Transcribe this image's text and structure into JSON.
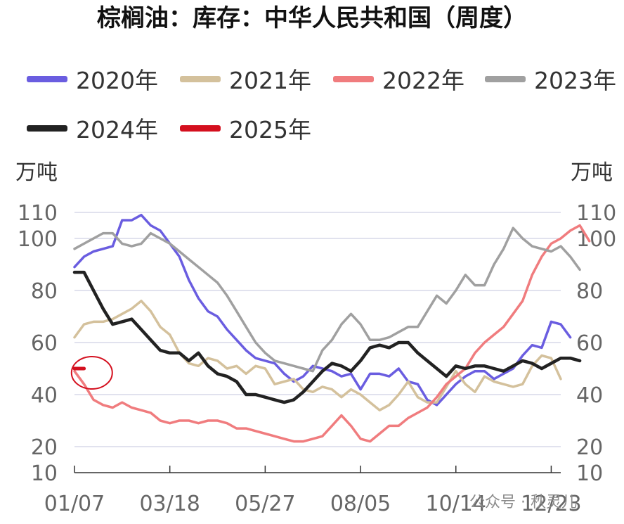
{
  "title": "棕榈油：库存：中华人民共和国（周度）",
  "watermark": "公众号 · 秋灵儿",
  "chart_data": {
    "type": "line",
    "title": "棕榈油：库存：中华人民共和国（周度）",
    "ylabel_left": "万吨",
    "ylabel_right": "万吨",
    "ylim": [
      10,
      110
    ],
    "yticks": [
      10,
      20,
      40,
      60,
      80,
      100,
      110
    ],
    "x_count": 52,
    "xtick_labels": [
      {
        "index": 0,
        "label": "01/07"
      },
      {
        "index": 10,
        "label": "03/18"
      },
      {
        "index": 20,
        "label": "05/27"
      },
      {
        "index": 30,
        "label": "08/05"
      },
      {
        "index": 40,
        "label": "10/14"
      },
      {
        "index": 50,
        "label": "12/23"
      }
    ],
    "grid": true,
    "legend_position": "top",
    "annotation": "red circle around 2025 data",
    "series": [
      {
        "name": "2020年",
        "color": "#6a5de0",
        "values": [
          89,
          93,
          95,
          96,
          97,
          107,
          107,
          109,
          105,
          103,
          98,
          93,
          84,
          77,
          72,
          70,
          65,
          61,
          57,
          54,
          53,
          52,
          48,
          45,
          47,
          51,
          50,
          49,
          47,
          48,
          42,
          48,
          48,
          47,
          50,
          45,
          44,
          38,
          36,
          40,
          44,
          47,
          49,
          49,
          46,
          48,
          50,
          55,
          59,
          58,
          68,
          67,
          62
        ]
      },
      {
        "name": "2021年",
        "color": "#d4c19c",
        "values": [
          62,
          67,
          68,
          68,
          69,
          71,
          73,
          76,
          72,
          66,
          63,
          56,
          52,
          51,
          54,
          53,
          50,
          51,
          48,
          51,
          50,
          44,
          45,
          46,
          42,
          41,
          43,
          42,
          39,
          42,
          40,
          37,
          34,
          36,
          40,
          45,
          39,
          37,
          37,
          43,
          49,
          44,
          41,
          47,
          45,
          44,
          43,
          44,
          51,
          55,
          54,
          46
        ]
      },
      {
        "name": "2022年",
        "color": "#f07c7e",
        "values": [
          49,
          44,
          38,
          36,
          35,
          37,
          35,
          34,
          33,
          30,
          29,
          30,
          30,
          29,
          30,
          30,
          29,
          27,
          27,
          26,
          25,
          24,
          23,
          22,
          22,
          23,
          24,
          28,
          32,
          28,
          23,
          22,
          25,
          28,
          28,
          31,
          33,
          35,
          39,
          44,
          47,
          50,
          56,
          60,
          63,
          66,
          71,
          76,
          86,
          93,
          98,
          100,
          103,
          105,
          99
        ]
      },
      {
        "name": "2023年",
        "color": "#a0a0a0",
        "values": [
          96,
          98,
          100,
          102,
          102,
          98,
          97,
          98,
          102,
          100,
          98,
          95,
          92,
          89,
          86,
          83,
          78,
          72,
          66,
          60,
          56,
          53,
          52,
          51,
          50,
          49,
          57,
          61,
          67,
          71,
          67,
          61,
          61,
          62,
          64,
          66,
          66,
          72,
          78,
          75,
          80,
          86,
          82,
          82,
          90,
          96,
          104,
          100,
          97,
          96,
          95,
          97,
          93,
          88
        ]
      },
      {
        "name": "2024年",
        "color": "#222222",
        "values": [
          87,
          87,
          80,
          73,
          67,
          68,
          69,
          65,
          61,
          57,
          56,
          56,
          53,
          56,
          51,
          48,
          47,
          45,
          40,
          40,
          39,
          38,
          37,
          38,
          41,
          45,
          49,
          52,
          51,
          49,
          53,
          58,
          59,
          58,
          60,
          60,
          56,
          53,
          50,
          47,
          51,
          50,
          51,
          51,
          50,
          49,
          51,
          53,
          52,
          50,
          52,
          54,
          54,
          53
        ]
      },
      {
        "name": "2025年",
        "color": "#d40f1e",
        "values": [
          50,
          50
        ]
      }
    ]
  }
}
